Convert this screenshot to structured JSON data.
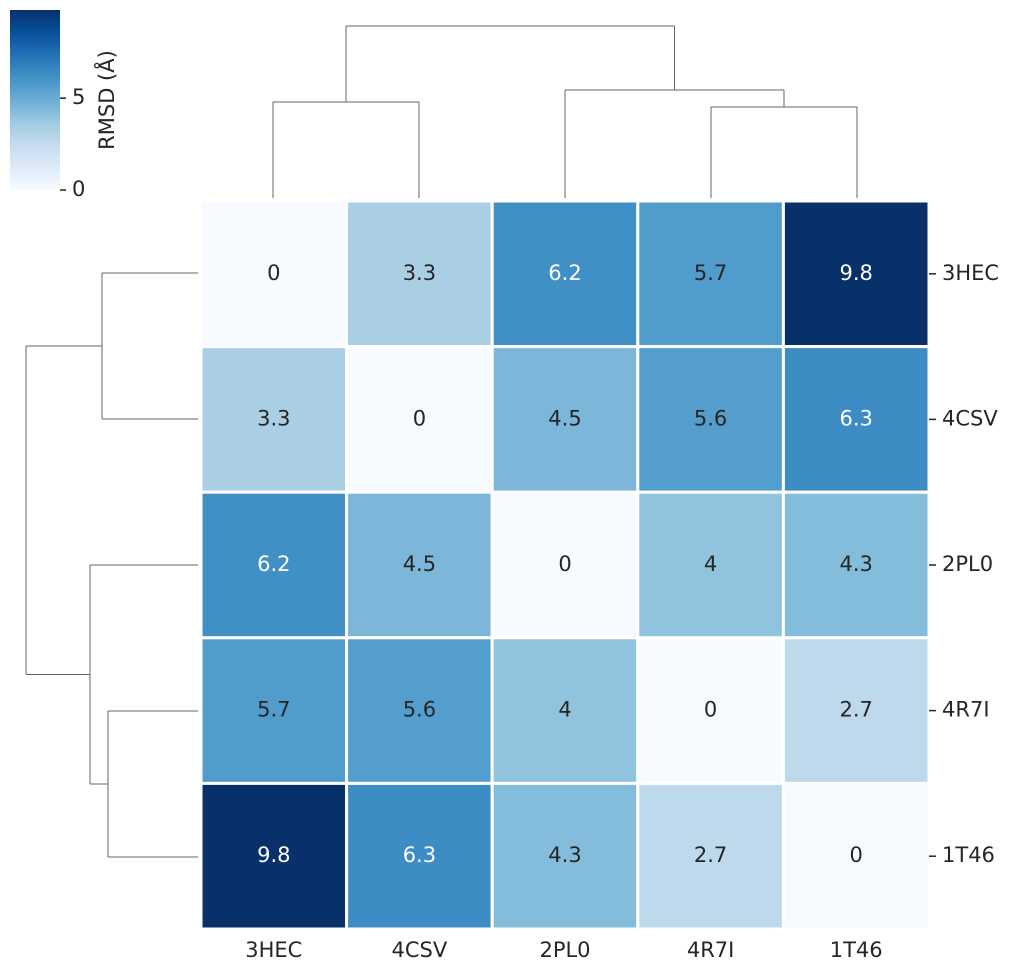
{
  "chart_data": {
    "type": "heatmap",
    "x_categories": [
      "3HEC",
      "4CSV",
      "2PL0",
      "4R7I",
      "1T46"
    ],
    "y_categories": [
      "3HEC",
      "4CSV",
      "2PL0",
      "4R7I",
      "1T46"
    ],
    "values": [
      [
        0,
        3.3,
        6.2,
        5.7,
        9.8
      ],
      [
        3.3,
        0,
        4.5,
        5.6,
        6.3
      ],
      [
        6.2,
        4.5,
        0,
        4,
        4.3
      ],
      [
        5.7,
        5.6,
        4,
        0,
        2.7
      ],
      [
        9.8,
        6.3,
        4.3,
        2.7,
        0
      ]
    ],
    "cmap": "Blues",
    "colorbar_label": "RMSD (Å)",
    "clim": [
      0,
      9.8
    ],
    "colorbar_ticks": [
      0,
      5
    ]
  }
}
